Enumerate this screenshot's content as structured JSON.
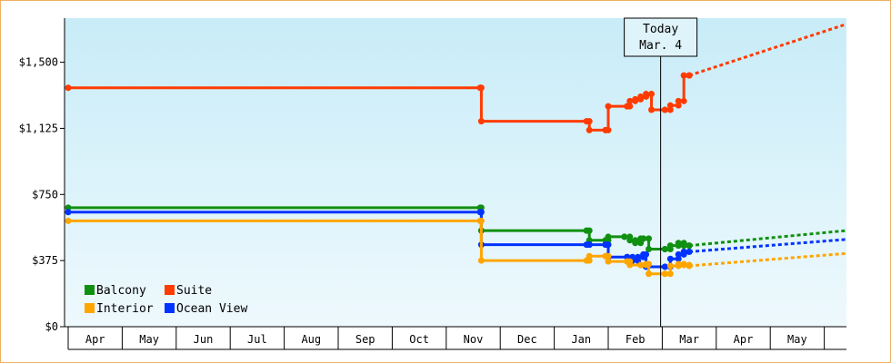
{
  "chart_data": {
    "type": "line",
    "title": "",
    "xlabel": "",
    "ylabel": "",
    "ylim": [
      0,
      1750
    ],
    "y_ticks": [
      {
        "value": 0,
        "label": "$0"
      },
      {
        "value": 375,
        "label": "$375"
      },
      {
        "value": 750,
        "label": "$750"
      },
      {
        "value": 1125,
        "label": "$1,125"
      },
      {
        "value": 1500,
        "label": "$1,500"
      }
    ],
    "x_range": [
      "Apr",
      "Jun (following year)"
    ],
    "x_tick_labels": [
      "Apr",
      "May",
      "Jun",
      "Jul",
      "Aug",
      "Sep",
      "Oct",
      "Nov",
      "Dec",
      "Jan",
      "Feb",
      "Mar",
      "Apr",
      "May"
    ],
    "today_marker": {
      "line1": "Today",
      "line2": "Mar. 4",
      "x_month": 10.97
    },
    "step_lines": true,
    "series": [
      {
        "name": "Suite",
        "color": "#ff3b00",
        "points": [
          [
            0,
            1355
          ],
          [
            7.63,
            1355
          ],
          [
            7.65,
            1165
          ],
          [
            9.6,
            1165
          ],
          [
            9.65,
            1115
          ],
          [
            9.95,
            1115
          ],
          [
            10.0,
            1250
          ],
          [
            10.35,
            1250
          ],
          [
            10.4,
            1280
          ],
          [
            10.5,
            1290
          ],
          [
            10.6,
            1305
          ],
          [
            10.7,
            1320
          ],
          [
            10.8,
            1230
          ],
          [
            11.05,
            1230
          ],
          [
            11.15,
            1255
          ],
          [
            11.3,
            1280
          ],
          [
            11.4,
            1425
          ],
          [
            11.5,
            1425
          ]
        ],
        "forecast": [
          [
            11.5,
            1425
          ],
          [
            14.4,
            1715
          ]
        ]
      },
      {
        "name": "Balcony",
        "color": "#109010",
        "points": [
          [
            0,
            675
          ],
          [
            7.63,
            675
          ],
          [
            7.65,
            545
          ],
          [
            9.6,
            545
          ],
          [
            9.65,
            490
          ],
          [
            9.95,
            490
          ],
          [
            10.0,
            510
          ],
          [
            10.3,
            510
          ],
          [
            10.4,
            490
          ],
          [
            10.5,
            475
          ],
          [
            10.6,
            500
          ],
          [
            10.65,
            500
          ],
          [
            10.75,
            440
          ],
          [
            11.05,
            440
          ],
          [
            11.15,
            460
          ],
          [
            11.3,
            475
          ],
          [
            11.4,
            460
          ],
          [
            11.5,
            460
          ]
        ],
        "forecast": [
          [
            11.5,
            460
          ],
          [
            14.4,
            545
          ]
        ]
      },
      {
        "name": "Ocean View",
        "color": "#0033ff",
        "points": [
          [
            0,
            650
          ],
          [
            7.63,
            650
          ],
          [
            7.65,
            465
          ],
          [
            9.6,
            465
          ],
          [
            9.65,
            465
          ],
          [
            9.95,
            465
          ],
          [
            10.0,
            395
          ],
          [
            10.35,
            395
          ],
          [
            10.45,
            375
          ],
          [
            10.55,
            395
          ],
          [
            10.65,
            410
          ],
          [
            10.7,
            340
          ],
          [
            11.05,
            340
          ],
          [
            11.15,
            385
          ],
          [
            11.3,
            410
          ],
          [
            11.4,
            425
          ],
          [
            11.5,
            425
          ]
        ],
        "forecast": [
          [
            11.5,
            425
          ],
          [
            14.4,
            495
          ]
        ]
      },
      {
        "name": "Interior",
        "color": "#ffa500",
        "points": [
          [
            0,
            600
          ],
          [
            7.63,
            600
          ],
          [
            7.65,
            375
          ],
          [
            9.6,
            375
          ],
          [
            9.65,
            400
          ],
          [
            9.95,
            400
          ],
          [
            10.0,
            370
          ],
          [
            10.35,
            370
          ],
          [
            10.4,
            350
          ],
          [
            10.6,
            350
          ],
          [
            10.7,
            355
          ],
          [
            10.75,
            300
          ],
          [
            11.05,
            300
          ],
          [
            11.15,
            345
          ],
          [
            11.3,
            355
          ],
          [
            11.4,
            350
          ],
          [
            11.5,
            345
          ]
        ],
        "forecast": [
          [
            11.5,
            345
          ],
          [
            14.4,
            415
          ]
        ]
      }
    ],
    "legend": {
      "placement": "bottom-left",
      "items": [
        {
          "label": "Balcony",
          "color": "#109010"
        },
        {
          "label": "Suite",
          "color": "#ff3b00"
        },
        {
          "label": "Interior",
          "color": "#ffa500"
        },
        {
          "label": "Ocean View",
          "color": "#0033ff"
        }
      ]
    },
    "grid": false
  }
}
